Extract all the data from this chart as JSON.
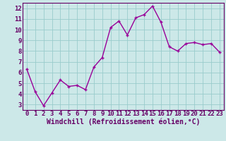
{
  "x": [
    0,
    1,
    2,
    3,
    4,
    5,
    6,
    7,
    8,
    9,
    10,
    11,
    12,
    13,
    14,
    15,
    16,
    17,
    18,
    19,
    20,
    21,
    22,
    23
  ],
  "y": [
    6.3,
    4.2,
    2.9,
    4.1,
    5.3,
    4.7,
    4.8,
    4.4,
    6.5,
    7.4,
    10.2,
    10.8,
    9.5,
    11.1,
    11.4,
    12.2,
    10.7,
    8.4,
    8.0,
    8.7,
    8.8,
    8.6,
    8.7,
    7.9
  ],
  "line_color": "#990099",
  "marker": "+",
  "bg_color": "#cce8e8",
  "grid_color": "#99cccc",
  "xlabel": "Windchill (Refroidissement éolien,°C)",
  "xlim": [
    -0.5,
    23.5
  ],
  "ylim": [
    2.5,
    12.5
  ],
  "yticks": [
    3,
    4,
    5,
    6,
    7,
    8,
    9,
    10,
    11,
    12
  ],
  "xticks": [
    0,
    1,
    2,
    3,
    4,
    5,
    6,
    7,
    8,
    9,
    10,
    11,
    12,
    13,
    14,
    15,
    16,
    17,
    18,
    19,
    20,
    21,
    22,
    23
  ],
  "axis_color": "#660066",
  "font_size": 6.5,
  "xlabel_fontsize": 7.0,
  "linewidth": 1.0,
  "markersize": 3.5,
  "markeredgewidth": 1.0
}
